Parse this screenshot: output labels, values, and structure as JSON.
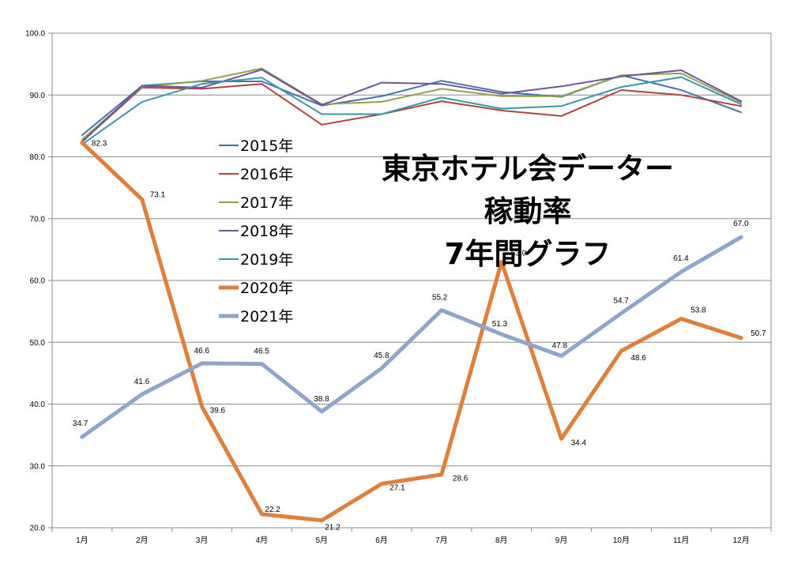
{
  "chart_data": {
    "type": "line",
    "title_lines": [
      "東京ホテル会データー",
      "稼動率",
      "7年間グラフ"
    ],
    "categories": [
      "1月",
      "2月",
      "3月",
      "4月",
      "5月",
      "6月",
      "7月",
      "8月",
      "9月",
      "10月",
      "11月",
      "12月"
    ],
    "y_ticks": [
      "20.0",
      "30.0",
      "40.0",
      "50.0",
      "60.0",
      "70.0",
      "80.0",
      "90.0",
      "100.0"
    ],
    "ylim": [
      20,
      100
    ],
    "grid": true,
    "legend_position": "left-middle",
    "series": [
      {
        "name": "2015年",
        "color": "#4472a8",
        "width": 2,
        "values": [
          83.5,
          91.5,
          92.2,
          92.2,
          88.3,
          89.8,
          92.3,
          90.5,
          89.7,
          93.2,
          90.8,
          87.2
        ]
      },
      {
        "name": "2016年",
        "color": "#b0433d",
        "width": 2,
        "values": [
          82.5,
          91.2,
          91.0,
          91.8,
          85.2,
          86.9,
          89.0,
          87.5,
          86.6,
          90.8,
          90.0,
          88.2
        ]
      },
      {
        "name": "2017年",
        "color": "#8da44c",
        "width": 2,
        "values": [
          82.8,
          91.3,
          92.3,
          94.3,
          88.5,
          88.9,
          91.0,
          89.8,
          89.8,
          93.2,
          93.5,
          88.8
        ]
      },
      {
        "name": "2018年",
        "color": "#6f52a0",
        "width": 2,
        "values": [
          82.4,
          91.5,
          91.2,
          94.1,
          88.4,
          92.0,
          91.8,
          90.2,
          91.4,
          93.0,
          94.0,
          89.0
        ]
      },
      {
        "name": "2019年",
        "color": "#3896ab",
        "width": 2,
        "values": [
          82.0,
          88.9,
          91.8,
          92.8,
          86.9,
          86.9,
          89.6,
          87.8,
          88.2,
          91.3,
          92.9,
          88.5
        ]
      },
      {
        "name": "2020年",
        "color": "#e07f3a",
        "width": 5,
        "values": [
          82.3,
          73.1,
          39.6,
          22.2,
          21.2,
          27.1,
          28.6,
          63.0,
          34.4,
          48.6,
          53.8,
          50.7
        ],
        "labels": [
          "82.3",
          "73.1",
          "39.6",
          "22.2",
          "21.2",
          "27.1",
          "28.6",
          "63.0",
          "34.4",
          "48.6",
          "53.8",
          "50.7"
        ]
      },
      {
        "name": "2021年",
        "color": "#8fa5cc",
        "width": 5,
        "values": [
          34.7,
          41.6,
          46.6,
          46.5,
          38.8,
          45.8,
          55.2,
          51.3,
          47.8,
          54.7,
          61.4,
          67.0
        ],
        "labels": [
          "34.7",
          "41.6",
          "46.6",
          "46.5",
          "38.8",
          "45.8",
          "55.2",
          "51.3",
          "47.8",
          "54.7",
          "61.4",
          "67.0"
        ]
      }
    ]
  }
}
